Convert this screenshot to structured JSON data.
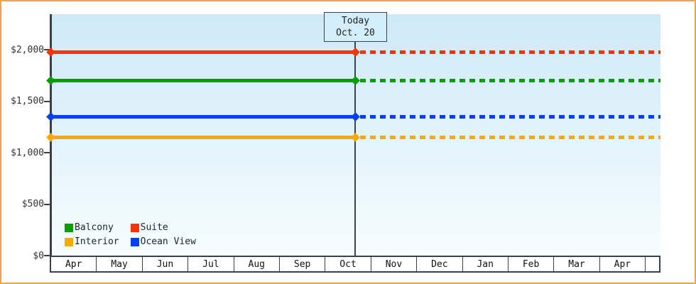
{
  "frame": {
    "background": "#ffffff",
    "border_color": "#eca44f"
  },
  "chart_data": {
    "type": "line",
    "title": "",
    "xlabel": "",
    "ylabel": "",
    "x_axis": {
      "categories": [
        "Apr",
        "May",
        "Jun",
        "Jul",
        "Aug",
        "Sep",
        "Oct",
        "Nov",
        "Dec",
        "Jan",
        "Feb",
        "Mar",
        "Apr",
        ""
      ]
    },
    "y_axis": {
      "min": 0,
      "max": 2345,
      "ticks": [
        {
          "label": "$0",
          "value": 0
        },
        {
          "label": "$500",
          "value": 500
        },
        {
          "label": "$1,000",
          "value": 1000
        },
        {
          "label": "$1,500",
          "value": 1500
        },
        {
          "label": "$2,000",
          "value": 2000
        }
      ]
    },
    "today": {
      "line1": "Today",
      "line2": "Oct. 20",
      "month": "Oct",
      "day": 20
    },
    "series": [
      {
        "name": "Suite",
        "color": "#fb3305",
        "value": 1975,
        "style_before_today": "solid",
        "style_after_today": "dotted"
      },
      {
        "name": "Balcony",
        "color": "#089e00",
        "value": 1700,
        "style_before_today": "solid",
        "style_after_today": "dotted"
      },
      {
        "name": "Ocean View",
        "color": "#0440ee",
        "value": 1350,
        "style_before_today": "solid",
        "style_after_today": "dotted"
      },
      {
        "name": "Interior",
        "color": "#ffa800",
        "value": 1150,
        "style_before_today": "solid",
        "style_after_today": "dotted"
      }
    ],
    "legend": [
      {
        "label": "Balcony",
        "color": "#089e00"
      },
      {
        "label": "Suite",
        "color": "#fb3305"
      },
      {
        "label": "Interior",
        "color": "#ffa800"
      },
      {
        "label": "Ocean View",
        "color": "#0440ee"
      }
    ],
    "legend_position": "bottom-left",
    "grid": false,
    "plot_background_gradient": [
      "#cfe9f8",
      "#f6fcff"
    ]
  }
}
